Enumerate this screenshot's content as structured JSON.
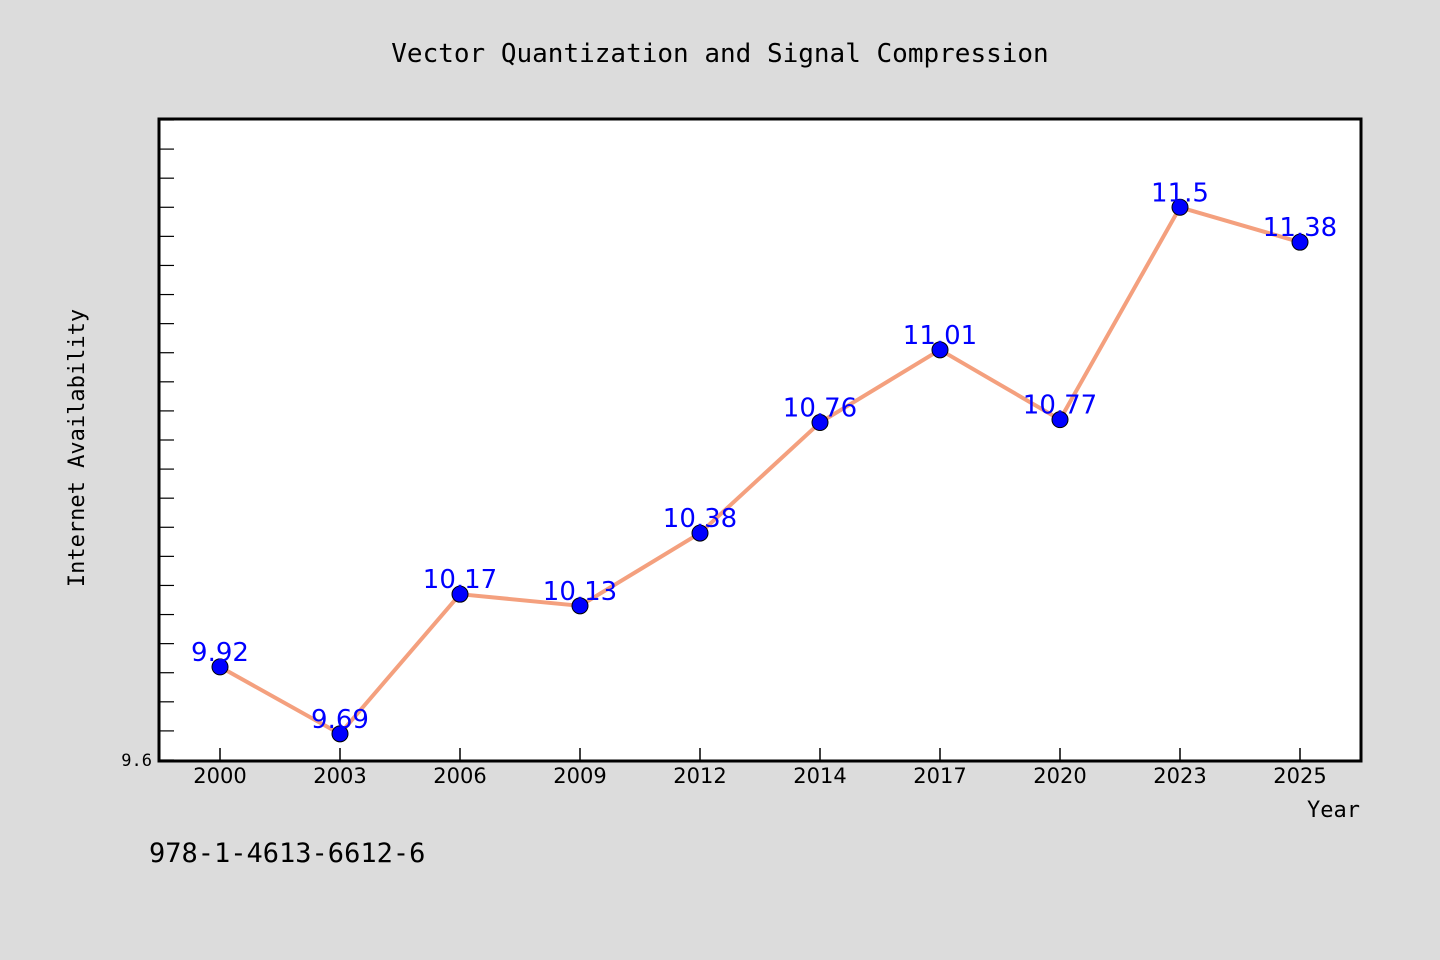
{
  "chart_data": {
    "type": "line",
    "title": "Vector Quantization and Signal Compression",
    "xlabel": "Year",
    "ylabel": "Internet Availability",
    "categories": [
      "2000",
      "2003",
      "2006",
      "2009",
      "2012",
      "2014",
      "2017",
      "2020",
      "2023",
      "2025"
    ],
    "series": [
      {
        "values": [
          9.92,
          9.69,
          10.17,
          10.13,
          10.38,
          10.76,
          11.01,
          10.77,
          11.5,
          11.38
        ],
        "labels": [
          "9.92",
          "9.69",
          "10.17",
          "10.13",
          "10.38",
          "10.76",
          "11.01",
          "10.77",
          "11.5",
          "11.38"
        ],
        "line_color": "#f4a07e",
        "marker_color": "#0000ff"
      }
    ],
    "ylim": [
      9.6,
      11.8
    ],
    "y_tick_labels": [
      "9.6"
    ],
    "grid": false,
    "legend": "none"
  },
  "footnote": "978-1-4613-6612-6"
}
